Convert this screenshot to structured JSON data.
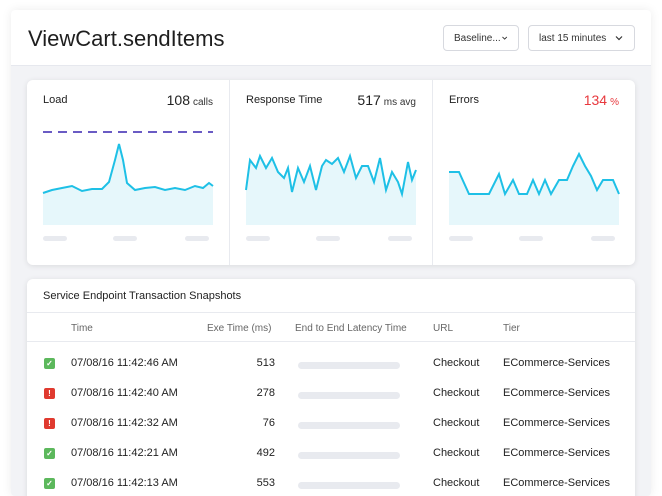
{
  "header": {
    "title": "ViewCart.sendItems",
    "baseline_label": "Baseline...",
    "range_label": "last 15 minutes"
  },
  "metrics": [
    {
      "label": "Load",
      "value": "108",
      "unit": "calls"
    },
    {
      "label": "Response Time",
      "value": "517",
      "unit": "ms avg"
    },
    {
      "label": "Errors",
      "value": "134",
      "unit": "%"
    }
  ],
  "colors": {
    "line": "#1ec0e6",
    "baseline": "#6a5bc4",
    "error": "#e8383d",
    "ok": "#5cb85c",
    "err_badge": "#e03a2f"
  },
  "snapshots": {
    "title": "Service Endpoint Transaction Snapshots",
    "columns": [
      "Time",
      "Exe Time (ms)",
      "End to End Latency Time",
      "URL",
      "Tier"
    ],
    "rows": [
      {
        "status": "ok",
        "time": "07/08/16 11:42:46 AM",
        "exe": "513",
        "url": "Checkout",
        "tier": "ECommerce-Services"
      },
      {
        "status": "err",
        "time": "07/08/16 11:42:40 AM",
        "exe": "278",
        "url": "Checkout",
        "tier": "ECommerce-Services"
      },
      {
        "status": "err",
        "time": "07/08/16 11:42:32 AM",
        "exe": "76",
        "url": "Checkout",
        "tier": "ECommerce-Services"
      },
      {
        "status": "ok",
        "time": "07/08/16 11:42:21 AM",
        "exe": "492",
        "url": "Checkout",
        "tier": "ECommerce-Services"
      },
      {
        "status": "ok",
        "time": "07/08/16 11:42:13 AM",
        "exe": "553",
        "url": "Checkout",
        "tier": "ECommerce-Services"
      }
    ]
  }
}
